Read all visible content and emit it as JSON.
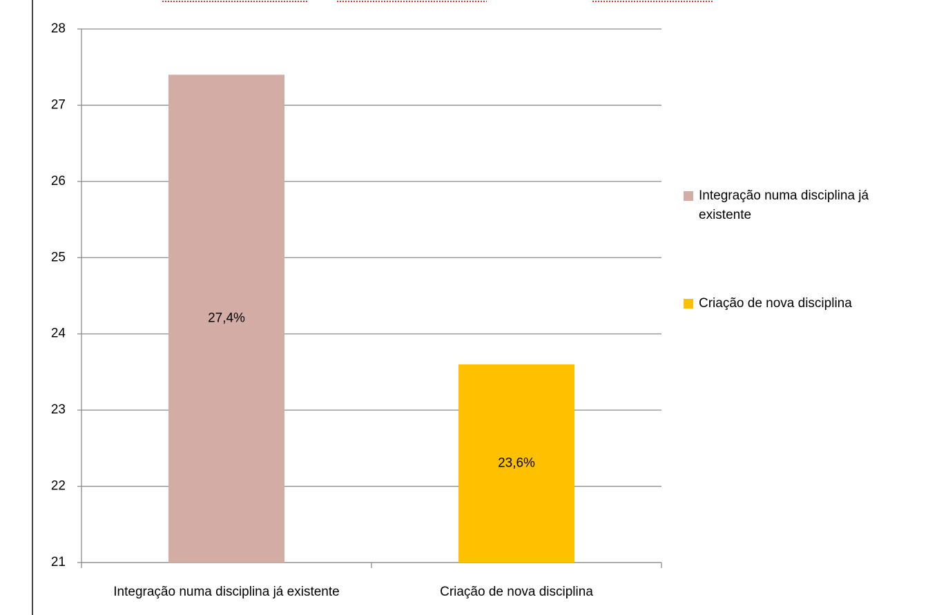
{
  "chart_data": {
    "type": "bar",
    "categories": [
      "Integração numa disciplina já existente",
      "Criação de nova disciplina"
    ],
    "values": [
      27.4,
      23.6
    ],
    "value_labels": [
      "27,4%",
      "23,6%"
    ],
    "colors": [
      "#d4aca6",
      "#ffc000"
    ],
    "ylim": [
      21,
      28
    ],
    "yticks": [
      21,
      22,
      23,
      24,
      25,
      26,
      27,
      28
    ],
    "grid": true,
    "legend": "right"
  }
}
